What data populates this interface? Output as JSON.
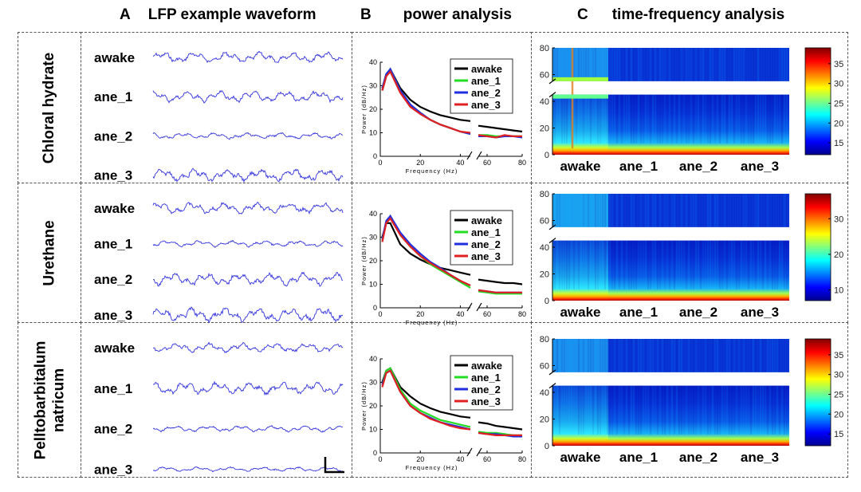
{
  "columns": [
    {
      "letter": "A",
      "title": "LFP example waveform"
    },
    {
      "letter": "B",
      "title": "power analysis"
    },
    {
      "letter": "C",
      "title": "time-frequency analysis"
    }
  ],
  "rows": [
    {
      "label_lines": [
        "Chloral hydrate"
      ]
    },
    {
      "label_lines": [
        "Urethane"
      ]
    },
    {
      "label_lines": [
        "Pelltobarbitalum",
        "natricum"
      ]
    }
  ],
  "conditions": [
    "awake",
    "ane_1",
    "ane_2",
    "ane_3"
  ],
  "waveform_labels": [
    "awake",
    "ane_1",
    "ane_2",
    "ane_3"
  ],
  "spectrogram_xlabels": [
    "awake",
    "ane_1",
    "ane_2",
    "ane_3"
  ],
  "colors": {
    "awake": "#000000",
    "ane_1": "#22dd22",
    "ane_2": "#1f2fe0",
    "ane_3": "#e02020",
    "waveform": "#3333dd"
  },
  "chart_data": [
    {
      "type": "line",
      "panel": "B",
      "row": "Chloral hydrate",
      "xlabel": "Frequency (Hz)",
      "ylabel": "Power (dB/Hz)",
      "xlim": [
        0,
        80
      ],
      "ylim": [
        0,
        40
      ],
      "xticks": [
        0,
        20,
        40,
        60,
        80
      ],
      "yticks": [
        0,
        10,
        20,
        30,
        40
      ],
      "axis_break": [
        45,
        55
      ],
      "x": [
        1,
        3,
        5,
        10,
        15,
        20,
        25,
        30,
        35,
        40,
        45,
        55,
        60,
        65,
        70,
        75,
        80
      ],
      "series": [
        {
          "name": "awake",
          "values": [
            28,
            34,
            37,
            29,
            24,
            21,
            19,
            17.5,
            16.5,
            15.5,
            15,
            13,
            12.5,
            12,
            11.5,
            11,
            10.5
          ]
        },
        {
          "name": "ane_1",
          "values": [
            29,
            35,
            37,
            28,
            22,
            18,
            15.5,
            13.5,
            12,
            10.5,
            9.5,
            9,
            9,
            8.5,
            8.5,
            8.5,
            8.5
          ]
        },
        {
          "name": "ane_2",
          "values": [
            29,
            35,
            37,
            28,
            22,
            18.5,
            15.5,
            13.5,
            12,
            10.5,
            9.5,
            8.5,
            8.5,
            8,
            8.5,
            8.5,
            8
          ]
        },
        {
          "name": "ane_3",
          "values": [
            28,
            34,
            36,
            27,
            21,
            18,
            15.5,
            13.5,
            12,
            10.5,
            10,
            9,
            8.5,
            8,
            9,
            8.5,
            8.5
          ]
        }
      ]
    },
    {
      "type": "line",
      "panel": "B",
      "row": "Urethane",
      "xlabel": "Frequency (Hz)",
      "ylabel": "Power (dB/Hz)",
      "xlim": [
        0,
        80
      ],
      "ylim": [
        0,
        40
      ],
      "xticks": [
        0,
        20,
        40,
        60,
        80
      ],
      "yticks": [
        0,
        10,
        20,
        30,
        40
      ],
      "axis_break": [
        45,
        55
      ],
      "x": [
        1,
        3,
        5,
        10,
        15,
        20,
        25,
        30,
        35,
        40,
        45,
        55,
        60,
        65,
        70,
        75,
        80
      ],
      "series": [
        {
          "name": "awake",
          "values": [
            30,
            36,
            36,
            27,
            23,
            20.5,
            18.5,
            17,
            16,
            15,
            14,
            12,
            11.5,
            11,
            10.5,
            10.5,
            10
          ]
        },
        {
          "name": "ane_1",
          "values": [
            29,
            36,
            39,
            31,
            26,
            22,
            18.5,
            16,
            13.5,
            11,
            8.5,
            7,
            6.5,
            6,
            6,
            6,
            6
          ]
        },
        {
          "name": "ane_2",
          "values": [
            29,
            37,
            39,
            32,
            27,
            23,
            19.5,
            17,
            14,
            11.5,
            9.5,
            7.5,
            7,
            6.5,
            6.5,
            6.5,
            6.5
          ]
        },
        {
          "name": "ane_3",
          "values": [
            28,
            36,
            38,
            31,
            26,
            22,
            19,
            16.5,
            14,
            11.5,
            9.5,
            7.5,
            7,
            6.5,
            6.5,
            6.5,
            6.5
          ]
        }
      ]
    },
    {
      "type": "line",
      "panel": "B",
      "row": "Pelltobarbitalum natricum",
      "xlabel": "Frequency (Hz)",
      "ylabel": "Power (dB/Hz)",
      "xlim": [
        0,
        80
      ],
      "ylim": [
        0,
        40
      ],
      "xticks": [
        0,
        20,
        40,
        60,
        80
      ],
      "yticks": [
        0,
        10,
        20,
        30,
        40
      ],
      "axis_break": [
        45,
        55
      ],
      "x": [
        1,
        3,
        5,
        10,
        15,
        20,
        25,
        30,
        35,
        40,
        45,
        55,
        60,
        65,
        70,
        75,
        80
      ],
      "series": [
        {
          "name": "awake",
          "values": [
            30,
            35,
            36,
            28,
            24,
            21,
            19,
            17.5,
            16.5,
            15.5,
            15,
            13,
            12.5,
            11.5,
            11,
            10.5,
            10
          ]
        },
        {
          "name": "ane_1",
          "values": [
            29,
            35,
            36,
            27,
            21,
            18,
            16,
            14,
            13,
            12,
            11,
            9,
            8.5,
            8.5,
            8,
            7.5,
            7.5
          ]
        },
        {
          "name": "ane_2",
          "values": [
            29,
            34,
            35,
            26,
            20,
            17,
            15,
            13,
            12,
            11,
            10,
            8.5,
            8,
            8,
            7.5,
            7,
            7
          ]
        },
        {
          "name": "ane_3",
          "values": [
            28,
            34,
            35,
            26,
            20,
            17,
            14.5,
            13,
            11.5,
            10.5,
            10,
            8.5,
            8,
            7.5,
            7.5,
            7.5,
            7.5
          ]
        }
      ]
    },
    {
      "type": "heatmap",
      "panel": "C",
      "row": "Chloral hydrate",
      "ylim": [
        0,
        80
      ],
      "yticks": [
        0,
        20,
        40,
        60,
        80
      ],
      "axis_break": [
        45,
        55
      ],
      "categories": [
        "awake",
        "ane_1",
        "ane_2",
        "ane_3"
      ],
      "colorbar": {
        "min": 12,
        "max": 39,
        "ticks": [
          15,
          20,
          25,
          30,
          35
        ]
      }
    },
    {
      "type": "heatmap",
      "panel": "C",
      "row": "Urethane",
      "ylim": [
        0,
        80
      ],
      "yticks": [
        0,
        20,
        40,
        60,
        80
      ],
      "axis_break": [
        45,
        55
      ],
      "categories": [
        "awake",
        "ane_1",
        "ane_2",
        "ane_3"
      ],
      "colorbar": {
        "min": 7,
        "max": 37,
        "ticks": [
          10,
          20,
          30
        ]
      }
    },
    {
      "type": "heatmap",
      "panel": "C",
      "row": "Pelltobarbitalum natricum",
      "ylim": [
        0,
        80
      ],
      "yticks": [
        0,
        20,
        40,
        60,
        80
      ],
      "axis_break": [
        45,
        55
      ],
      "categories": [
        "awake",
        "ane_1",
        "ane_2",
        "ane_3"
      ],
      "colorbar": {
        "min": 12,
        "max": 39,
        "ticks": [
          15,
          20,
          25,
          30,
          35
        ]
      }
    }
  ]
}
